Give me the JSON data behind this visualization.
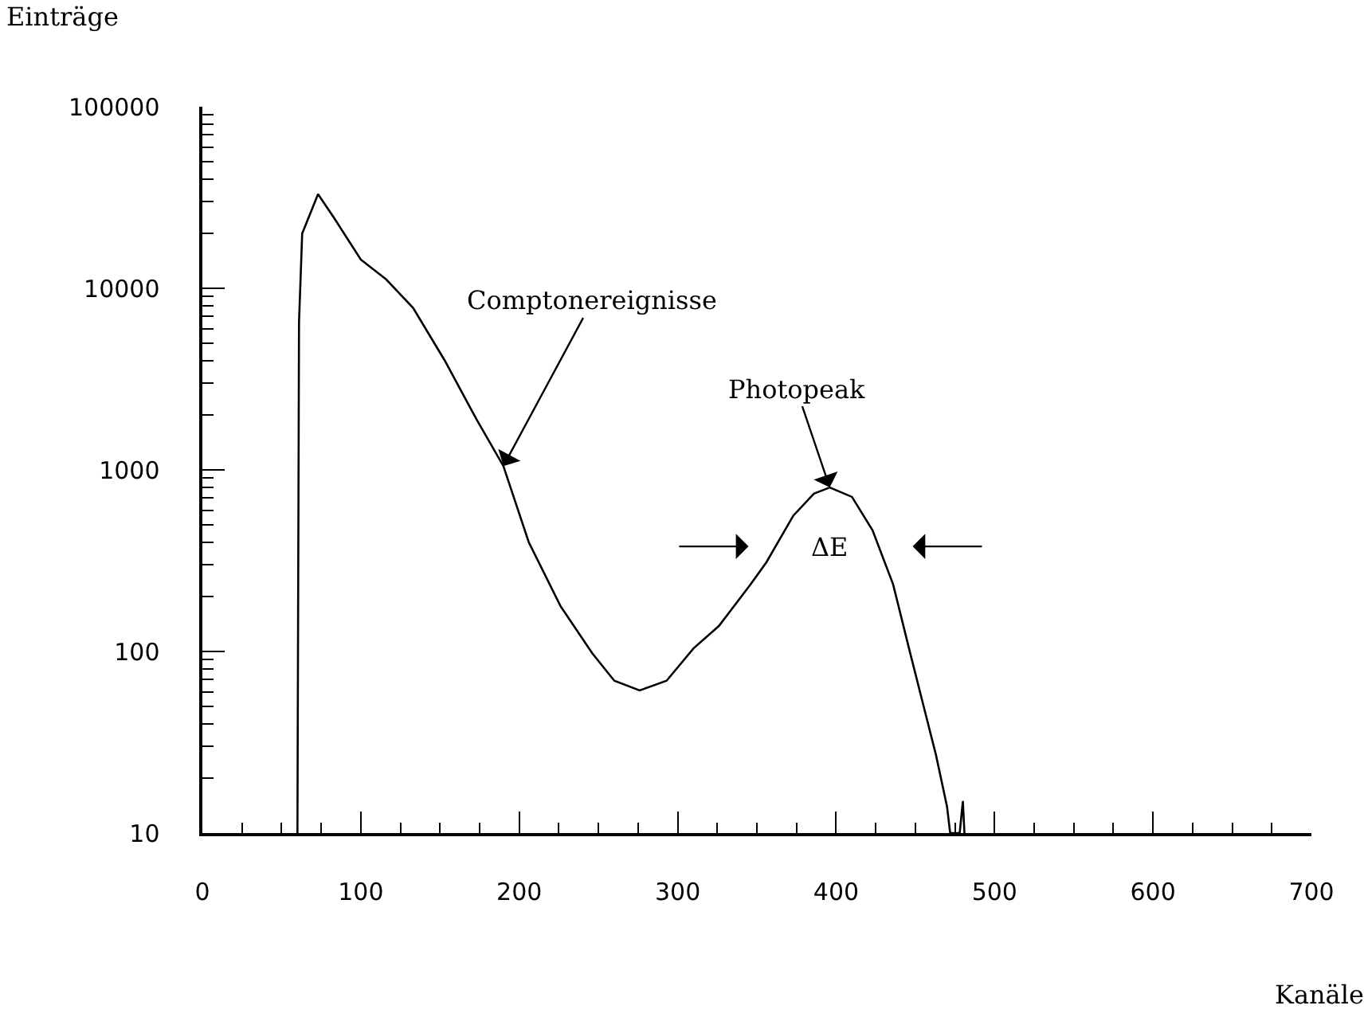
{
  "chart_data": {
    "type": "line",
    "ylabel": "Einträge",
    "xlabel": "Kanäle",
    "x": [
      60,
      61,
      63,
      73,
      83,
      100,
      116,
      133,
      153,
      173,
      190,
      206,
      226,
      246,
      260,
      276,
      293,
      310,
      326,
      346,
      356,
      373,
      386,
      396,
      410,
      423,
      436,
      446,
      456,
      463,
      470,
      472,
      478,
      480,
      481
    ],
    "series": [
      {
        "color": "#000000",
        "values": [
          10,
          6500,
          20000,
          33000,
          24500,
          14400,
          11200,
          7800,
          4000,
          1900,
          1050,
          400,
          178,
          98,
          69,
          61,
          69,
          104,
          138,
          234,
          310,
          560,
          740,
          800,
          710,
          465,
          234,
          104,
          47,
          27,
          14,
          10,
          10,
          15,
          10
        ]
      }
    ],
    "log": "y",
    "xlim": [
      0,
      700
    ],
    "ylim": [
      10,
      100000
    ],
    "yticks": [
      10,
      100,
      1000,
      10000,
      100000
    ],
    "xticks": [
      0,
      {
        "value": 25,
        "label": null
      },
      {
        "value": 50,
        "label": null
      },
      {
        "value": 75,
        "label": null
      },
      100,
      {
        "value": 125,
        "label": null
      },
      {
        "value": 150,
        "label": null
      },
      {
        "value": 175,
        "label": null
      },
      200,
      {
        "value": 225,
        "label": null
      },
      {
        "value": 250,
        "label": null
      },
      {
        "value": 275,
        "label": null
      },
      300,
      {
        "value": 325,
        "label": null
      },
      {
        "value": 350,
        "label": null
      },
      {
        "value": 375,
        "label": null
      },
      400,
      {
        "value": 425,
        "label": null
      },
      {
        "value": 450,
        "label": null
      },
      {
        "value": 475,
        "label": null
      },
      500,
      {
        "value": 525,
        "label": null
      },
      {
        "value": 550,
        "label": null
      },
      {
        "value": 575,
        "label": null
      },
      600,
      {
        "value": 625,
        "label": null
      },
      {
        "value": 650,
        "label": null
      },
      {
        "value": 675,
        "label": null
      },
      700
    ],
    "marker": "none",
    "line_style": "solid",
    "annotations": [
      {
        "text": "Comptonereignisse",
        "x": 190,
        "y": 1050
      },
      {
        "text": "Photopeak",
        "x": 396,
        "y": 800
      },
      "ΔE"
    ]
  }
}
